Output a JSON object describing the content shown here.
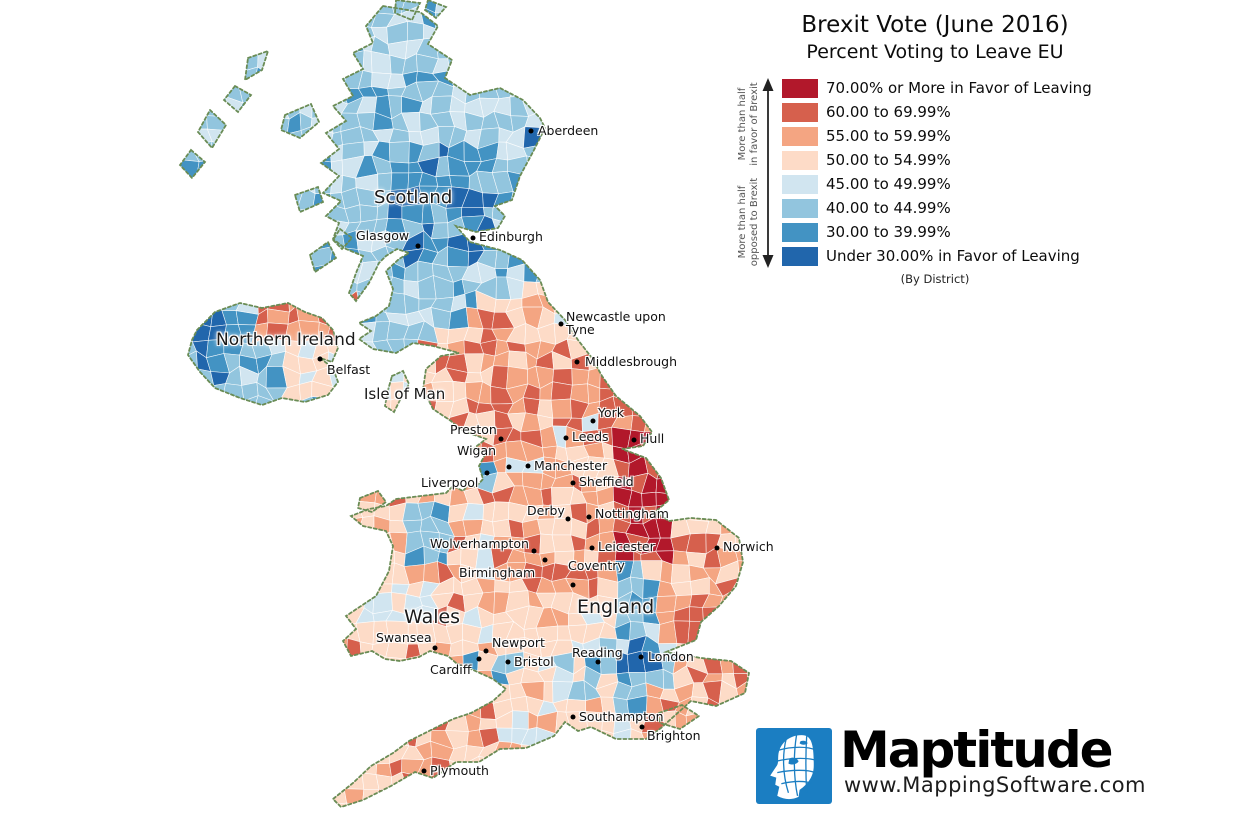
{
  "title": "Brexit Vote (June 2016)",
  "subtitle": "Percent Voting to Leave EU",
  "legend": {
    "note": "(By District)",
    "axis_favor": {
      "line1": "More than half",
      "line2": "in favor of Brexit"
    },
    "axis_opposed": {
      "line1": "More than half",
      "line2": "opposed to Brexit"
    },
    "items": [
      {
        "label": "70.00% or More in Favor of Leaving",
        "color": "#b2182b"
      },
      {
        "label": "60.00 to 69.99%",
        "color": "#d6604d"
      },
      {
        "label": "55.00 to 59.99%",
        "color": "#f4a582"
      },
      {
        "label": "50.00 to 54.99%",
        "color": "#fddbc7"
      },
      {
        "label": "45.00 to 49.99%",
        "color": "#d1e5f0"
      },
      {
        "label": "40.00 to 44.99%",
        "color": "#92c5de"
      },
      {
        "label": "30.00 to 39.99%",
        "color": "#4393c3"
      },
      {
        "label": "Under 30.00% in Favor of Leaving",
        "color": "#2166ac"
      }
    ]
  },
  "map": {
    "coast_color": "#6a8c55",
    "regions": [
      {
        "name": "Scotland"
      },
      {
        "name": "Northern Ireland"
      },
      {
        "name": "Isle of Man"
      },
      {
        "name": "England"
      },
      {
        "name": "Wales"
      }
    ],
    "cities": [
      {
        "name": "Aberdeen"
      },
      {
        "name": "Glasgow"
      },
      {
        "name": "Edinburgh"
      },
      {
        "name": "Belfast"
      },
      {
        "name": "Newcastle upon Tyne"
      },
      {
        "name": "Middlesbrough"
      },
      {
        "name": "York"
      },
      {
        "name": "Leeds"
      },
      {
        "name": "Hull"
      },
      {
        "name": "Preston"
      },
      {
        "name": "Wigan"
      },
      {
        "name": "Manchester"
      },
      {
        "name": "Sheffield"
      },
      {
        "name": "Liverpool"
      },
      {
        "name": "Derby"
      },
      {
        "name": "Nottingham"
      },
      {
        "name": "Wolverhampton"
      },
      {
        "name": "Leicester"
      },
      {
        "name": "Birmingham"
      },
      {
        "name": "Coventry"
      },
      {
        "name": "Norwich"
      },
      {
        "name": "Swansea"
      },
      {
        "name": "Newport"
      },
      {
        "name": "Cardiff"
      },
      {
        "name": "Bristol"
      },
      {
        "name": "Reading"
      },
      {
        "name": "London"
      },
      {
        "name": "Southampton"
      },
      {
        "name": "Brighton"
      },
      {
        "name": "Plymouth"
      }
    ]
  },
  "branding": {
    "name": "Maptitude",
    "website": "www.MappingSoftware.com",
    "logo_color": "#1b7ec2"
  }
}
